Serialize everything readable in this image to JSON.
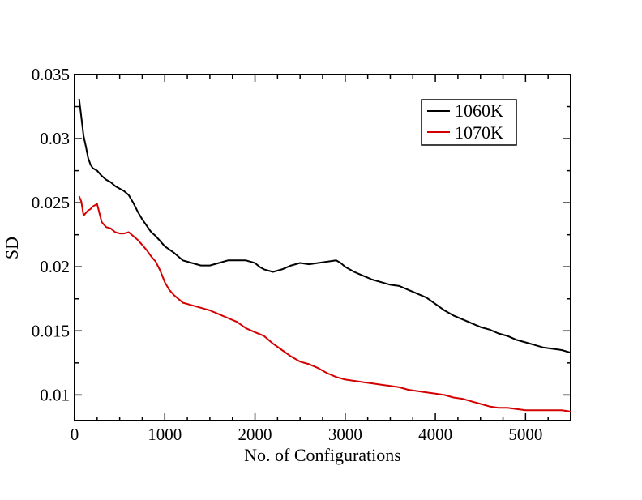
{
  "chart_data": {
    "type": "line",
    "title": "",
    "xlabel": "No. of Configurations",
    "ylabel": "SD",
    "xlim": [
      0,
      5500
    ],
    "ylim": [
      0.008,
      0.035
    ],
    "x_ticks": [
      0,
      1000,
      2000,
      3000,
      4000,
      5000
    ],
    "x_tick_labels": [
      "0",
      "1000",
      "2000",
      "3000",
      "4000",
      "5000"
    ],
    "y_ticks": [
      0.01,
      0.015,
      0.02,
      0.025,
      0.03,
      0.035
    ],
    "y_tick_labels": [
      "0.01",
      "0.015",
      "0.02",
      "0.025",
      "0.03",
      "0.035"
    ],
    "grid": false,
    "legend_position": "top-right",
    "series": [
      {
        "name": "1060K",
        "color": "#000000",
        "x": [
          50,
          75,
          100,
          125,
          150,
          175,
          200,
          250,
          300,
          350,
          400,
          450,
          500,
          550,
          600,
          650,
          700,
          750,
          800,
          850,
          900,
          950,
          1000,
          1100,
          1200,
          1300,
          1400,
          1500,
          1600,
          1700,
          1800,
          1900,
          2000,
          2050,
          2100,
          2150,
          2200,
          2300,
          2400,
          2500,
          2600,
          2700,
          2800,
          2900,
          2950,
          3000,
          3100,
          3200,
          3300,
          3400,
          3500,
          3600,
          3700,
          3800,
          3900,
          4000,
          4100,
          4200,
          4300,
          4400,
          4500,
          4600,
          4700,
          4800,
          4900,
          5000,
          5100,
          5200,
          5300,
          5400,
          5500
        ],
        "y": [
          0.0331,
          0.0317,
          0.0302,
          0.0294,
          0.0285,
          0.028,
          0.0277,
          0.0275,
          0.0271,
          0.0268,
          0.0266,
          0.0263,
          0.0261,
          0.0259,
          0.0256,
          0.025,
          0.0243,
          0.0237,
          0.0232,
          0.0227,
          0.0224,
          0.022,
          0.0216,
          0.0211,
          0.0205,
          0.0203,
          0.0201,
          0.0201,
          0.0203,
          0.0205,
          0.0205,
          0.0205,
          0.0203,
          0.02,
          0.0198,
          0.0197,
          0.0196,
          0.0198,
          0.0201,
          0.0203,
          0.0202,
          0.0203,
          0.0204,
          0.0205,
          0.0203,
          0.02,
          0.0196,
          0.0193,
          0.019,
          0.0188,
          0.0186,
          0.0185,
          0.0182,
          0.0179,
          0.0176,
          0.0171,
          0.0166,
          0.0162,
          0.0159,
          0.0156,
          0.0153,
          0.0151,
          0.0148,
          0.0146,
          0.0143,
          0.0141,
          0.0139,
          0.0137,
          0.0136,
          0.0135,
          0.0133
        ]
      },
      {
        "name": "1070K",
        "color": "#d40000",
        "x": [
          50,
          75,
          100,
          125,
          150,
          175,
          200,
          225,
          250,
          275,
          300,
          350,
          400,
          450,
          500,
          550,
          600,
          650,
          700,
          750,
          800,
          850,
          900,
          950,
          1000,
          1050,
          1100,
          1200,
          1300,
          1400,
          1500,
          1600,
          1700,
          1800,
          1900,
          2000,
          2100,
          2200,
          2300,
          2400,
          2500,
          2600,
          2700,
          2800,
          2900,
          3000,
          3100,
          3200,
          3300,
          3400,
          3500,
          3600,
          3700,
          3800,
          3900,
          4000,
          4100,
          4200,
          4300,
          4400,
          4500,
          4600,
          4700,
          4800,
          4900,
          5000,
          5100,
          5200,
          5300,
          5400,
          5500
        ],
        "y": [
          0.0255,
          0.0251,
          0.024,
          0.0242,
          0.0244,
          0.0245,
          0.0247,
          0.0248,
          0.0249,
          0.0242,
          0.0235,
          0.0231,
          0.023,
          0.0227,
          0.0226,
          0.0226,
          0.0227,
          0.0224,
          0.0221,
          0.0217,
          0.0213,
          0.0208,
          0.0204,
          0.0197,
          0.0188,
          0.0182,
          0.0178,
          0.0172,
          0.017,
          0.0168,
          0.0166,
          0.0163,
          0.016,
          0.0157,
          0.0152,
          0.0149,
          0.0146,
          0.014,
          0.0135,
          0.013,
          0.0126,
          0.0124,
          0.0121,
          0.0117,
          0.0114,
          0.0112,
          0.0111,
          0.011,
          0.0109,
          0.0108,
          0.0107,
          0.0106,
          0.0104,
          0.0103,
          0.0102,
          0.0101,
          0.01,
          0.0098,
          0.0097,
          0.0095,
          0.0093,
          0.0091,
          0.009,
          0.009,
          0.0089,
          0.0088,
          0.0088,
          0.0088,
          0.0088,
          0.0088,
          0.0087
        ]
      }
    ]
  }
}
